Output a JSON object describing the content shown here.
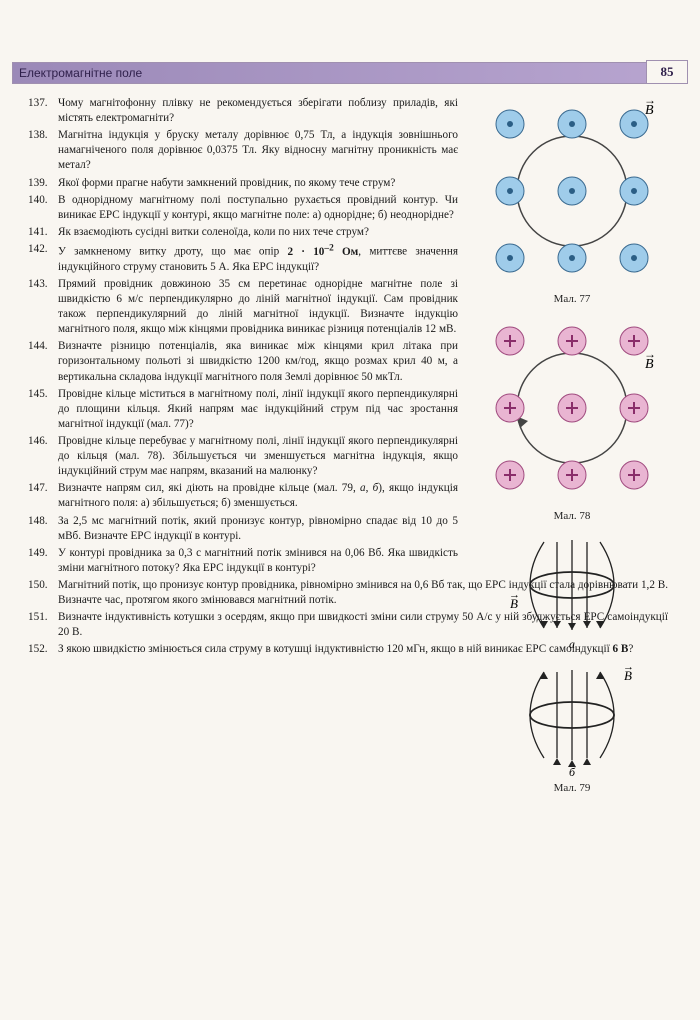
{
  "header": {
    "title": "Електромагнітне поле",
    "page_number": "85"
  },
  "problems_left": [
    {
      "n": "137.",
      "t": "Чому магнітофонну плівку не рекомендується збері­гати поблизу приладів, які містять електромагніти?"
    },
    {
      "n": "138.",
      "t": "Магнітна індукція у бруску металу дорівнює 0,75 Тл, а індукція зовнішнього намагніченого поля дорівнює 0,0375 Тл. Яку відносну магнітну проникність має метал?"
    },
    {
      "n": "139.",
      "t": "Якої форми прагне набути замкнений провідник, по якому тече струм?"
    },
    {
      "n": "140.",
      "t": "В однорідному магнітному полі поступально руха­ється провідний контур. Чи виникає ЕРС індукції у контурі, якщо магнітне поле: а) однорідне; б) не­однорідне?"
    },
    {
      "n": "141.",
      "t": "Як взаємодіють сусідні витки соленоїда, коли по них тече струм?"
    },
    {
      "n": "142.",
      "t": "У замкненому витку дроту, що має опір <b>2 · 10<sup>–2</sup> Ом</b>, миттєве значення індукційного струму становить 5 А. Яка ЕРС індукції?"
    },
    {
      "n": "143.",
      "t": "Прямий провідник довжиною 35 см перетинає одно­рідне магнітне поле зі швидкістю 6 м/с перпенди­кулярно до ліній магнітної індукції. Сам провідник також перпендикулярний до ліній магнітної індукції. Визначте індукцію магнітного поля, якщо між кінцями провідника виникає різниця потенціалів 12 мВ."
    },
    {
      "n": "144.",
      "t": "Визначте різницю потенціалів, яка виникає між кінцями крил літака при горизонтальному польоті зі швидкістю 1200 км/год, якщо розмах крил 40 м, а вертикальна складова індукції магнітного поля Землі дорівнює 50 мкТл."
    },
    {
      "n": "145.",
      "t": "Провідне кільце міститься в магнітному полі, лінії індукції якого перпендикулярні до площини кільця. Який напрям має індукційний струм під час зростан­ня магнітної індукції (мал. 77)?"
    },
    {
      "n": "146.",
      "t": "Провідне кільце перебуває у магнітному полі, лінії індукції якого перпендикулярні до кільця (мал. 78). Збільшується чи зменшується магнітна індукція, якщо індукційний струм має напрям, вказаний на малюнку?"
    },
    {
      "n": "147.",
      "t": "Визначте напрям сил, які діють на провідне кільце (мал. 79, <i>а</i>, <i>б</i>), якщо індукція магнітного поля: а) збільшується; б) зменшується."
    },
    {
      "n": "148.",
      "t": "За 2,5 мс магнітний потік, який пронизує контур, рівномірно спадає від 10 до 5 мВб. Визначте ЕРС індукції в контурі."
    },
    {
      "n": "149.",
      "t": "У контурі провідника за 0,3 с магнітний потік змі­нився на 0,06 Вб. Яка швидкість зміни магнітного потоку? Яка ЕРС індукції в контурі?"
    }
  ],
  "problems_full": [
    {
      "n": "150.",
      "t": "Магнітний потік, що пронизує контур провідника, рівномірно змінився на 0,6 Вб так, що ЕРС індукції стала дорівнювати 1,2 В. Визначте час, протягом якого змінювався магнітний потік."
    },
    {
      "n": "151.",
      "t": "Визначте індуктивність котушки з осердям, якщо при швидкості зміни сили струму 50 А/с у ній збуджується ЕРС самоіндукції 20 В."
    },
    {
      "n": "152.",
      "t": "З якою швидкістю змінюється сила струму в котушці індуктивністю 120 мГн, якщо в ній виникає ЕРС самоіндукції <b>6 В</b>?"
    }
  ],
  "figures": {
    "fig77": {
      "caption": "Мал. 77",
      "dot_color": "#9fccea",
      "dot_stroke": "#3a6a90",
      "center_color": "#2b5e85",
      "bg": "#f9f6f1",
      "ring_stroke": "#444",
      "label": "B⃗"
    },
    "fig78": {
      "caption": "Мал. 78",
      "dot_color": "#e9b5d2",
      "dot_stroke": "#a04b7f",
      "plus_color": "#8a2d6a",
      "ring_stroke": "#444",
      "label": "B⃗"
    },
    "fig79": {
      "caption": "Мал. 79",
      "stroke": "#222",
      "label_a": "а",
      "label_b": "б",
      "label_B": "B⃗"
    }
  }
}
